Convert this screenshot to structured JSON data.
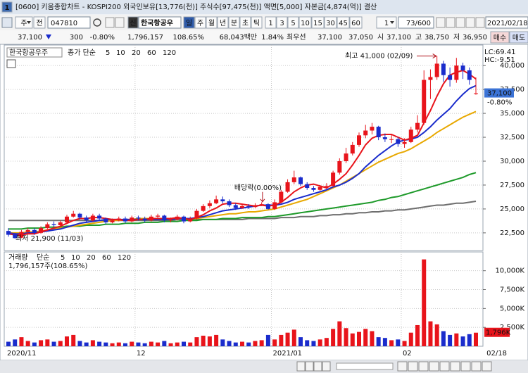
{
  "window": {
    "id": "1",
    "title": "[0600] 키움종합차트 - KOSPI200 외국인보유[13,776(천)] 주식수[97,475(천)] 액면[5,000] 자본금[4,874(억)] 결산"
  },
  "toolbar": {
    "market": "주",
    "scope": "전",
    "code": "047810",
    "flag": "신",
    "name": "한국항공우",
    "periods": [
      "일",
      "주",
      "월",
      "년",
      "분",
      "초",
      "틱"
    ],
    "minutes": [
      "1",
      "3",
      "5",
      "10",
      "15",
      "30",
      "45",
      "60"
    ],
    "unit": "1",
    "count": "73/600",
    "date": "2021/02/18"
  },
  "quote": {
    "price": "37,100",
    "change": "300",
    "change_rate": "-0.80%",
    "volume": "1,796,157",
    "volume_rate": "108.65%",
    "amount": "68,043백만",
    "turnover": "1.84%",
    "best_label": "최우선",
    "ask": "37,100",
    "bid": "37,050",
    "open_label": "시",
    "open": "37,100",
    "high_label": "고",
    "high": "38,750",
    "low_label": "저",
    "low": "36,950",
    "buy": "매수",
    "sell": "매도"
  },
  "chart_data": [
    {
      "type": "candlestick",
      "name": "한국항공우주",
      "ma_label": "종가 단순",
      "up_color": "#e8141b",
      "down_color": "#1a2ccc",
      "grid": true,
      "ylim": [
        20650,
        42000
      ],
      "yticks": [
        {
          "value": 22500,
          "label": "22,500"
        },
        {
          "value": 25000,
          "label": "25,000"
        },
        {
          "value": 27500,
          "label": "27,500"
        },
        {
          "value": 30000,
          "label": "30,000"
        },
        {
          "value": 32500,
          "label": "32,500"
        },
        {
          "value": 35000,
          "label": "35,000"
        },
        {
          "value": 37500,
          "label": "37,500"
        },
        {
          "value": 40000,
          "label": "40,000"
        }
      ],
      "open": [
        22700,
        22300,
        22000,
        22600,
        22800,
        22500,
        23000,
        23400,
        23300,
        23600,
        24200,
        24500,
        24100,
        23800,
        24300,
        24000,
        23600,
        23800,
        24000,
        23700,
        24100,
        24000,
        23800,
        24200,
        24300,
        23800,
        23900,
        24200,
        23700,
        24000,
        24800,
        25300,
        25600,
        26000,
        25800,
        25400,
        25100,
        25300,
        25200,
        25400,
        25500,
        25000,
        25700,
        26800,
        27800,
        28300,
        27600,
        27200,
        27000,
        27300,
        27400,
        28800,
        30000,
        30800,
        31700,
        32700,
        33200,
        33600,
        32500,
        32300,
        32300,
        31800,
        32000,
        33300,
        34000,
        38500,
        38800,
        40200,
        39000,
        38500,
        40000,
        39500,
        37100
      ],
      "high": [
        23000,
        22500,
        22800,
        23000,
        23000,
        23200,
        23600,
        23700,
        23800,
        24400,
        24800,
        24600,
        24300,
        24500,
        24500,
        24100,
        24000,
        24200,
        24200,
        24300,
        24300,
        24200,
        24400,
        24500,
        24400,
        24100,
        24400,
        24300,
        24200,
        25000,
        25500,
        25900,
        26400,
        26300,
        26000,
        25600,
        25500,
        25500,
        25600,
        25700,
        25600,
        26000,
        27000,
        28100,
        29000,
        28400,
        27800,
        27400,
        27500,
        27700,
        29000,
        30300,
        31400,
        32000,
        33000,
        33800,
        34000,
        33700,
        32900,
        32800,
        32500,
        32400,
        33600,
        34800,
        39500,
        39600,
        41000,
        40500,
        39800,
        40800,
        40300,
        39800,
        38750
      ],
      "low": [
        22100,
        21900,
        21950,
        22400,
        22300,
        22400,
        22900,
        23100,
        23200,
        23500,
        24100,
        23900,
        23600,
        23700,
        23800,
        23400,
        23500,
        23700,
        23500,
        23600,
        23800,
        23600,
        23700,
        24000,
        23600,
        23600,
        23800,
        23500,
        23600,
        23900,
        24700,
        25100,
        25500,
        25600,
        25200,
        24900,
        25000,
        25000,
        25100,
        25300,
        24900,
        24900,
        25600,
        26700,
        27600,
        27400,
        27000,
        26800,
        26900,
        27100,
        27300,
        28600,
        29800,
        30600,
        31500,
        32400,
        32800,
        32200,
        32000,
        31900,
        31500,
        31400,
        31900,
        33000,
        33800,
        36500,
        38500,
        38300,
        37800,
        38200,
        38600,
        38000,
        36950
      ],
      "close": [
        22300,
        21950,
        22600,
        22800,
        22500,
        23000,
        23400,
        23300,
        23600,
        24200,
        24500,
        24100,
        23800,
        24300,
        24000,
        23600,
        23800,
        24000,
        23700,
        24100,
        24000,
        23800,
        24200,
        24300,
        23800,
        23900,
        24200,
        23700,
        24000,
        24800,
        25300,
        25600,
        26000,
        25800,
        25400,
        25100,
        25300,
        25200,
        25400,
        25500,
        25000,
        25700,
        26800,
        27800,
        28300,
        27600,
        27200,
        27000,
        27300,
        27400,
        28800,
        30000,
        30800,
        31700,
        32700,
        33200,
        33600,
        32500,
        32300,
        32300,
        31800,
        32000,
        33300,
        34000,
        38500,
        38800,
        40200,
        39000,
        38500,
        40000,
        39500,
        38500,
        37100
      ],
      "lines": [
        {
          "name": "5",
          "color": "#e8141b",
          "values": [
            22400,
            22300,
            22300,
            22400,
            22400,
            22600,
            22800,
            23000,
            23200,
            23500,
            23800,
            24000,
            24000,
            24100,
            24100,
            24000,
            23900,
            23900,
            23800,
            23800,
            23900,
            23900,
            24000,
            24000,
            24000,
            24000,
            24100,
            24000,
            23900,
            24100,
            24400,
            24800,
            25100,
            25500,
            25600,
            25600,
            25500,
            25400,
            25300,
            25400,
            25300,
            25400,
            25700,
            26200,
            26800,
            27200,
            27500,
            27600,
            27400,
            27200,
            27600,
            28100,
            28700,
            29600,
            30600,
            31700,
            32400,
            32700,
            32800,
            32800,
            32500,
            32200,
            32400,
            32700,
            34000,
            35300,
            36800,
            38100,
            39000,
            39300,
            39500,
            39100,
            38600
          ]
        },
        {
          "name": "10",
          "color": "#1a2ccc",
          "values": [
            22500,
            22400,
            22400,
            22500,
            22500,
            22600,
            22700,
            22800,
            22900,
            23100,
            23300,
            23500,
            23600,
            23700,
            23800,
            23900,
            23900,
            23900,
            23900,
            23900,
            23900,
            23900,
            23900,
            23900,
            23900,
            23900,
            24000,
            24000,
            24000,
            24100,
            24200,
            24400,
            24600,
            24800,
            24900,
            25000,
            25100,
            25200,
            25300,
            25400,
            25400,
            25400,
            25500,
            25700,
            26000,
            26200,
            26400,
            26600,
            26800,
            27000,
            27300,
            27500,
            27800,
            28200,
            28700,
            29400,
            30000,
            30600,
            31100,
            31600,
            32000,
            32200,
            32300,
            32500,
            33000,
            33600,
            34300,
            34900,
            35500,
            36300,
            37000,
            37600,
            37900
          ]
        },
        {
          "name": "20",
          "color": "#e8a800",
          "values": [
            22500,
            22500,
            22500,
            22600,
            22600,
            22700,
            22800,
            22900,
            23000,
            23100,
            23200,
            23300,
            23400,
            23500,
            23600,
            23700,
            23800,
            23800,
            23900,
            23900,
            24000,
            24000,
            24000,
            24000,
            24000,
            24000,
            24000,
            24000,
            24000,
            24000,
            24100,
            24200,
            24300,
            24400,
            24500,
            24500,
            24600,
            24700,
            24700,
            24800,
            24900,
            25000,
            25200,
            25400,
            25600,
            25800,
            26000,
            26300,
            26600,
            26900,
            27200,
            27500,
            27900,
            28300,
            28700,
            29100,
            29500,
            29900,
            30200,
            30500,
            30800,
            31000,
            31300,
            31700,
            32100,
            32500,
            33000,
            33400,
            33800,
            34200,
            34600,
            34900,
            35200
          ]
        },
        {
          "name": "60",
          "color": "#1e9a2a",
          "values": [
            22900,
            22900,
            22900,
            23000,
            23000,
            23000,
            23100,
            23100,
            23100,
            23200,
            23200,
            23200,
            23300,
            23300,
            23300,
            23400,
            23400,
            23400,
            23500,
            23500,
            23500,
            23600,
            23600,
            23600,
            23700,
            23700,
            23700,
            23800,
            23800,
            23800,
            23900,
            23900,
            23900,
            24000,
            24000,
            24000,
            24100,
            24100,
            24100,
            24100,
            24200,
            24200,
            24300,
            24400,
            24500,
            24600,
            24700,
            24800,
            24900,
            25000,
            25100,
            25200,
            25300,
            25400,
            25500,
            25600,
            25700,
            25900,
            26000,
            26200,
            26300,
            26500,
            26700,
            26900,
            27100,
            27300,
            27500,
            27700,
            27900,
            28100,
            28300,
            28600,
            28800
          ]
        },
        {
          "name": "120",
          "color": "#6e6e6e",
          "values": [
            23800,
            23800,
            23800,
            23800,
            23800,
            23800,
            23800,
            23800,
            23800,
            23800,
            23800,
            23800,
            23800,
            23800,
            23800,
            23800,
            23800,
            23800,
            23800,
            23800,
            23800,
            23800,
            23800,
            23800,
            23800,
            23800,
            23900,
            23900,
            23900,
            23900,
            23900,
            23900,
            23900,
            23900,
            23900,
            23900,
            23900,
            24000,
            24000,
            24000,
            24000,
            24000,
            24100,
            24100,
            24100,
            24200,
            24200,
            24200,
            24300,
            24300,
            24400,
            24400,
            24500,
            24500,
            24600,
            24600,
            24700,
            24700,
            24800,
            24800,
            24900,
            24900,
            25000,
            25100,
            25200,
            25300,
            25400,
            25400,
            25500,
            25600,
            25600,
            25700,
            25800
          ]
        }
      ],
      "last_price_label": "37,100",
      "last_change_label": "-0.80%",
      "indicators": [
        {
          "text": "LC:69.41",
          "color": "#d0101a"
        },
        {
          "text": "HC:-9.51",
          "color": "#1a2ccc"
        }
      ],
      "high_note": "최고 41,000 (02/09)",
      "low_note": "최저 21,900 (11/03)",
      "dividend_note": "배당락(0.00%)"
    },
    {
      "type": "bar",
      "title": "거래량",
      "ma_label": "단순",
      "legend": [
        {
          "name": "5",
          "color": "#a13bb0"
        },
        {
          "name": "10",
          "color": "#1a2ccc"
        },
        {
          "name": "20",
          "color": "#e8a800"
        },
        {
          "name": "60",
          "color": "#1e9a2a"
        },
        {
          "name": "120",
          "color": "#6e6e6e"
        }
      ],
      "summary": "1,796,157주(108.65%)",
      "grid": true,
      "categories": [
        "2020/11",
        null,
        null,
        null,
        null,
        null,
        null,
        null,
        null,
        null,
        null,
        null,
        null,
        null,
        null,
        null,
        null,
        null,
        null,
        null,
        "12",
        null,
        null,
        null,
        null,
        null,
        null,
        null,
        null,
        null,
        null,
        null,
        null,
        null,
        null,
        null,
        null,
        null,
        null,
        null,
        null,
        "2021/01",
        null,
        null,
        null,
        null,
        null,
        null,
        null,
        null,
        null,
        null,
        null,
        null,
        null,
        null,
        null,
        null,
        null,
        null,
        null,
        "02",
        null,
        null,
        null,
        null,
        null,
        null,
        null,
        null,
        null,
        null,
        null
      ],
      "values": [
        600,
        900,
        1200,
        700,
        500,
        800,
        900,
        600,
        700,
        1300,
        1500,
        700,
        500,
        800,
        600,
        500,
        400,
        500,
        400,
        600,
        500,
        400,
        600,
        500,
        700,
        400,
        500,
        600,
        500,
        1200,
        1400,
        1300,
        1500,
        900,
        700,
        500,
        600,
        500,
        700,
        800,
        1500,
        900,
        1500,
        1800,
        2200,
        1200,
        800,
        700,
        900,
        1100,
        2300,
        3300,
        2400,
        1700,
        1900,
        2300,
        2000,
        1200,
        1100,
        800,
        900,
        700,
        1800,
        2800,
        11500,
        3300,
        2900,
        2000,
        1500,
        1700,
        1300,
        1600,
        1796
      ],
      "ylim": [
        0,
        12300
      ],
      "yticks": [
        {
          "value": 2500,
          "label": "2,500K"
        },
        {
          "value": 5000,
          "label": "5,000K"
        },
        {
          "value": 7500,
          "label": "7,500K"
        },
        {
          "value": 10000,
          "label": "10,000K"
        }
      ],
      "last_value_label": "1,796K",
      "x_end_label": "02/18"
    }
  ]
}
